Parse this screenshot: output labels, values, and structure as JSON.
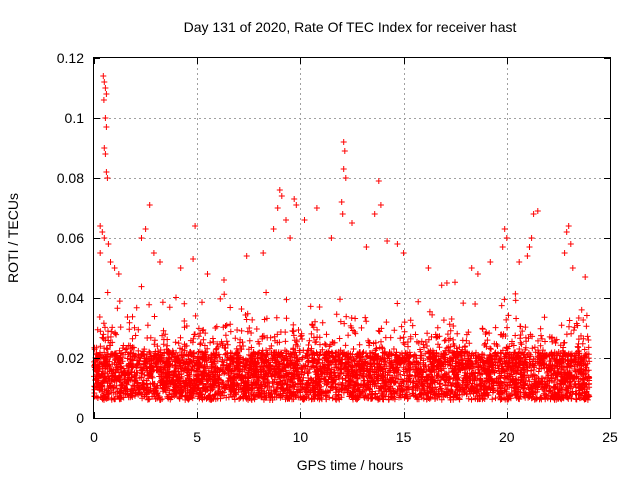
{
  "chart_data": {
    "type": "scatter",
    "title": "Day 131 of 2020, Rate Of TEC Index for receiver hast",
    "xlabel": "GPS time / hours",
    "ylabel": "ROTI / TECUs",
    "xlim": [
      0,
      25
    ],
    "ylim": [
      0,
      0.12
    ],
    "x_ticks": [
      0,
      5,
      10,
      15,
      20,
      25
    ],
    "x_tick_labels": [
      "0",
      "5",
      "10",
      "15",
      "20",
      "25"
    ],
    "y_ticks": [
      0,
      0.02,
      0.04,
      0.06,
      0.08,
      0.1,
      0.12
    ],
    "y_tick_labels": [
      "0",
      "0.02",
      "0.04",
      "0.06",
      "0.08",
      "0.1",
      "0.12"
    ],
    "grid": true,
    "marker": "+",
    "series": [
      {
        "name": "ROTI",
        "color": "#ff0000",
        "notes": "Dense cloud of ~thousands of points spanning 0-24 h; bulk between 0.005 and 0.025 TECU/min",
        "points": [
          [
            0.45,
            0.114
          ],
          [
            0.5,
            0.112
          ],
          [
            0.55,
            0.11
          ],
          [
            0.6,
            0.108
          ],
          [
            0.48,
            0.106
          ],
          [
            0.55,
            0.1
          ],
          [
            0.6,
            0.097
          ],
          [
            0.5,
            0.09
          ],
          [
            0.55,
            0.088
          ],
          [
            0.6,
            0.082
          ],
          [
            0.65,
            0.08
          ],
          [
            0.3,
            0.064
          ],
          [
            0.4,
            0.062
          ],
          [
            0.5,
            0.06
          ],
          [
            0.7,
            0.058
          ],
          [
            0.3,
            0.055
          ],
          [
            0.8,
            0.052
          ],
          [
            1.0,
            0.05
          ],
          [
            1.2,
            0.048
          ],
          [
            2.7,
            0.071
          ],
          [
            2.5,
            0.063
          ],
          [
            2.3,
            0.06
          ],
          [
            2.9,
            0.055
          ],
          [
            3.2,
            0.052
          ],
          [
            4.9,
            0.064
          ],
          [
            4.8,
            0.053
          ],
          [
            4.2,
            0.05
          ],
          [
            5.5,
            0.048
          ],
          [
            6.3,
            0.046
          ],
          [
            7.4,
            0.054
          ],
          [
            8.2,
            0.055
          ],
          [
            9.0,
            0.076
          ],
          [
            9.1,
            0.074
          ],
          [
            8.9,
            0.07
          ],
          [
            9.3,
            0.066
          ],
          [
            9.7,
            0.073
          ],
          [
            9.8,
            0.071
          ],
          [
            10.2,
            0.066
          ],
          [
            10.8,
            0.07
          ],
          [
            9.5,
            0.06
          ],
          [
            8.7,
            0.063
          ],
          [
            12.1,
            0.092
          ],
          [
            12.15,
            0.089
          ],
          [
            12.1,
            0.083
          ],
          [
            12.2,
            0.08
          ],
          [
            12.0,
            0.072
          ],
          [
            12.05,
            0.068
          ],
          [
            12.5,
            0.065
          ],
          [
            11.5,
            0.06
          ],
          [
            13.8,
            0.079
          ],
          [
            13.9,
            0.071
          ],
          [
            13.6,
            0.068
          ],
          [
            14.2,
            0.059
          ],
          [
            13.2,
            0.057
          ],
          [
            14.7,
            0.058
          ],
          [
            15.0,
            0.055
          ],
          [
            16.2,
            0.05
          ],
          [
            17.1,
            0.045
          ],
          [
            18.3,
            0.05
          ],
          [
            18.6,
            0.048
          ],
          [
            19.2,
            0.052
          ],
          [
            19.9,
            0.063
          ],
          [
            20.0,
            0.06
          ],
          [
            19.8,
            0.057
          ],
          [
            20.6,
            0.052
          ],
          [
            21.3,
            0.068
          ],
          [
            21.5,
            0.069
          ],
          [
            21.2,
            0.06
          ],
          [
            21.1,
            0.057
          ],
          [
            21.0,
            0.054
          ],
          [
            23.0,
            0.064
          ],
          [
            22.9,
            0.062
          ],
          [
            23.1,
            0.058
          ],
          [
            22.8,
            0.055
          ],
          [
            23.2,
            0.05
          ],
          [
            23.8,
            0.047
          ]
        ]
      }
    ]
  }
}
